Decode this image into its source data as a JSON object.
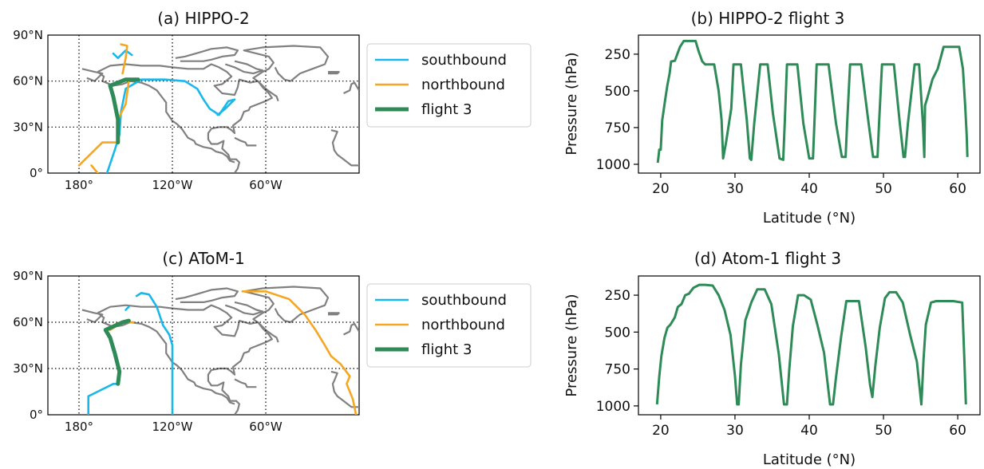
{
  "colors": {
    "southbound": "#1ab8ea",
    "northbound": "#f5a623",
    "flight3": "#2e8b57",
    "land": "#808080",
    "grid": "#000000"
  },
  "chart_data": [
    {
      "type": "map",
      "title": "(a) HIPPO-2",
      "xlim": [
        -200,
        0
      ],
      "ylim": [
        0,
        90
      ],
      "ytick_labels": [
        "0°",
        "30°N",
        "60°N",
        "90°N"
      ],
      "ytick_values": [
        0,
        30,
        60,
        90
      ],
      "xtick_labels": [
        "180°",
        "120°W",
        "60°W"
      ],
      "xtick_values": [
        -180,
        -120,
        -60
      ],
      "grid": true,
      "legend": {
        "placement": "right",
        "entries": [
          "southbound",
          "northbound",
          "flight 3"
        ]
      },
      "series": [
        {
          "name": "southbound",
          "points": [
            [
              -162,
              0
            ],
            [
              -157,
              15
            ],
            [
              -154,
              25
            ],
            [
              -153,
              40
            ],
            [
              -150,
              55
            ],
            [
              -140,
              61
            ],
            [
              -125,
              61
            ],
            [
              -112,
              60
            ],
            [
              -104,
              55
            ],
            [
              -100,
              48
            ],
            [
              -96,
              42
            ],
            [
              -90,
              38
            ],
            [
              -84,
              47
            ],
            [
              -80,
              48
            ],
            [
              -86,
              42
            ],
            [
              -91,
              38
            ]
          ]
        },
        {
          "name": "southbound",
          "points": [
            [
              -158,
              78
            ],
            [
              -155,
              75
            ],
            [
              -150,
              80
            ],
            [
              -146,
              77
            ]
          ]
        },
        {
          "name": "northbound",
          "points": [
            [
              -180,
              5
            ],
            [
              -170,
              15
            ],
            [
              -165,
              20
            ],
            [
              -155,
              20
            ],
            [
              -155,
              35
            ],
            [
              -150,
              45
            ],
            [
              -148,
              60
            ]
          ]
        },
        {
          "name": "northbound",
          "points": [
            [
              -168,
              0
            ],
            [
              -172,
              5
            ]
          ]
        },
        {
          "name": "northbound",
          "points": [
            [
              -152,
              65
            ],
            [
              -150,
              75
            ],
            [
              -149,
              83
            ],
            [
              -153,
              84
            ]
          ]
        },
        {
          "name": "flight 3",
          "points": [
            [
              -155,
              20
            ],
            [
              -155,
              35
            ],
            [
              -158,
              50
            ],
            [
              -160,
              57
            ],
            [
              -150,
              61
            ],
            [
              -142,
              61
            ]
          ]
        }
      ]
    },
    {
      "type": "line",
      "title": "(b) HIPPO-2 flight 3",
      "xlabel": "Latitude (°N)",
      "ylabel": "Pressure (hPa)",
      "xlim": [
        17,
        63
      ],
      "ylim": [
        1060,
        120
      ],
      "xticks": [
        20,
        30,
        40,
        50,
        60
      ],
      "yticks": [
        250,
        500,
        750,
        1000
      ],
      "series": [
        {
          "name": "flight 3",
          "x": [
            19.6,
            19.7,
            19.8,
            20.0,
            20.2,
            20.6,
            20.9,
            21.2,
            21.4,
            21.9,
            22.6,
            23.1,
            24.2,
            24.7,
            25.1,
            25.6,
            26.0,
            26.4,
            27.2,
            27.8,
            28.2,
            28.4,
            28.8,
            29.5,
            29.8,
            30.8,
            31.6,
            32.0,
            32.2,
            32.6,
            33.4,
            34.4,
            35.1,
            36.0,
            36.5,
            36.7,
            37.0,
            37.8,
            38.4,
            39.2,
            40.0,
            40.5,
            40.7,
            41.0,
            41.8,
            42.6,
            43.6,
            44.4,
            44.9,
            45.1,
            45.5,
            46.3,
            47.0,
            48.0,
            48.6,
            49.2,
            49.4,
            49.8,
            50.5,
            51.4,
            52.2,
            52.7,
            52.9,
            53.3,
            54.2,
            54.8,
            55.3,
            55.5,
            55.6,
            55.9,
            56.6,
            57.3,
            58.1,
            59.7,
            60.2,
            60.7,
            61.0,
            61.2,
            61.3
          ],
          "y": [
            990,
            950,
            900,
            900,
            700,
            560,
            460,
            380,
            300,
            295,
            200,
            160,
            160,
            160,
            230,
            300,
            320,
            320,
            320,
            500,
            700,
            960,
            850,
            620,
            320,
            320,
            700,
            960,
            970,
            720,
            320,
            320,
            650,
            960,
            970,
            720,
            320,
            320,
            320,
            720,
            960,
            960,
            720,
            320,
            320,
            320,
            720,
            950,
            950,
            720,
            320,
            320,
            320,
            720,
            950,
            950,
            720,
            320,
            320,
            320,
            720,
            950,
            950,
            720,
            320,
            320,
            720,
            950,
            600,
            550,
            420,
            350,
            200,
            200,
            200,
            350,
            600,
            800,
            950
          ]
        }
      ]
    },
    {
      "type": "map",
      "title": "(c) AToM-1",
      "xlim": [
        -200,
        0
      ],
      "ylim": [
        0,
        90
      ],
      "ytick_labels": [
        "0°",
        "30°N",
        "60°N",
        "90°N"
      ],
      "ytick_values": [
        0,
        30,
        60,
        90
      ],
      "xtick_labels": [
        "180°",
        "120°W",
        "60°W"
      ],
      "xtick_values": [
        -180,
        -120,
        -60
      ],
      "grid": true,
      "legend": {
        "placement": "right",
        "entries": [
          "southbound",
          "northbound",
          "flight 3"
        ]
      },
      "series": [
        {
          "name": "southbound",
          "points": [
            [
              -174,
              0
            ],
            [
              -174,
              12
            ],
            [
              -168,
              15
            ],
            [
              -158,
              20
            ],
            [
              -155,
              20
            ]
          ]
        },
        {
          "name": "southbound",
          "points": [
            [
              -120,
              0
            ],
            [
              -120,
              45
            ],
            [
              -122,
              52
            ],
            [
              -126,
              58
            ],
            [
              -130,
              70
            ],
            [
              -135,
              78
            ],
            [
              -140,
              79
            ],
            [
              -143,
              77
            ]
          ]
        },
        {
          "name": "southbound",
          "points": [
            [
              -148,
              70
            ],
            [
              -150,
              68
            ]
          ]
        },
        {
          "name": "northbound",
          "points": [
            [
              -2,
              0
            ],
            [
              -4,
              10
            ],
            [
              -8,
              20
            ],
            [
              -6,
              25
            ],
            [
              -12,
              33
            ],
            [
              -18,
              38
            ],
            [
              -22,
              45
            ],
            [
              -28,
              55
            ],
            [
              -35,
              65
            ],
            [
              -45,
              75
            ],
            [
              -60,
              80
            ],
            [
              -75,
              80
            ]
          ]
        },
        {
          "name": "northbound",
          "points": [
            [
              -160,
              55
            ],
            [
              -152,
              60
            ],
            [
              -145,
              60
            ]
          ]
        },
        {
          "name": "flight 3",
          "points": [
            [
              -155,
              20
            ],
            [
              -154,
              28
            ],
            [
              -157,
              40
            ],
            [
              -160,
              50
            ],
            [
              -163,
              55
            ],
            [
              -152,
              60
            ],
            [
              -148,
              61
            ]
          ]
        }
      ]
    },
    {
      "type": "line",
      "title": "(d) Atom-1 flight 3",
      "xlabel": "Latitude (°N)",
      "ylabel": "Pressure (hPa)",
      "xlim": [
        17,
        63
      ],
      "ylim": [
        1060,
        120
      ],
      "xticks": [
        20,
        30,
        40,
        50,
        60
      ],
      "yticks": [
        250,
        500,
        750,
        1000
      ],
      "series": [
        {
          "name": "flight 3",
          "x": [
            19.5,
            19.8,
            20.1,
            20.5,
            20.9,
            21.3,
            21.9,
            22.3,
            22.8,
            23.3,
            23.8,
            24.4,
            25.2,
            26.0,
            27.0,
            27.8,
            28.6,
            29.4,
            30.0,
            30.3,
            30.5,
            30.8,
            31.4,
            32.2,
            33.0,
            34.0,
            34.9,
            35.9,
            36.6,
            37.0,
            37.3,
            37.8,
            38.5,
            39.3,
            40.2,
            41.1,
            42.0,
            42.8,
            43.2,
            43.6,
            44.3,
            45.0,
            45.8,
            46.7,
            47.6,
            48.2,
            48.5,
            48.9,
            49.5,
            50.2,
            50.8,
            51.7,
            52.6,
            53.6,
            54.5,
            55.1,
            55.4,
            55.7,
            56.4,
            57.1,
            58.0,
            59.4,
            60.6,
            60.9,
            61.1
          ],
          "y": [
            990,
            800,
            660,
            540,
            470,
            450,
            400,
            330,
            310,
            250,
            240,
            200,
            180,
            180,
            185,
            250,
            350,
            520,
            800,
            990,
            990,
            720,
            420,
            300,
            210,
            210,
            310,
            650,
            990,
            990,
            760,
            460,
            250,
            250,
            280,
            450,
            640,
            990,
            990,
            810,
            530,
            290,
            290,
            290,
            600,
            860,
            940,
            730,
            470,
            270,
            230,
            230,
            300,
            520,
            700,
            990,
            680,
            450,
            300,
            290,
            290,
            290,
            300,
            700,
            990
          ]
        }
      ]
    }
  ]
}
